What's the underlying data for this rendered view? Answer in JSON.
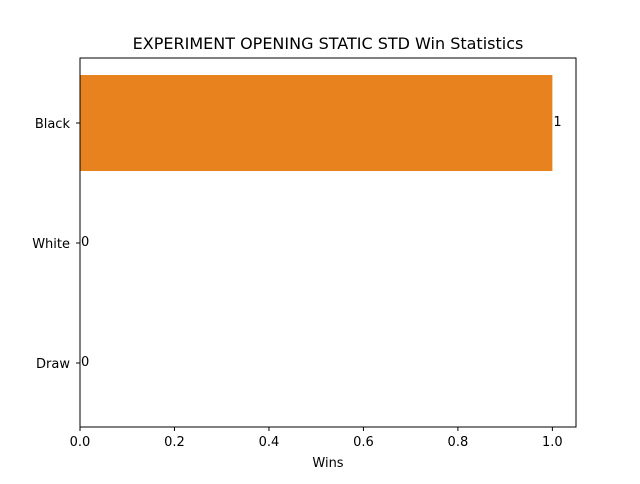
{
  "chart_data": {
    "type": "bar",
    "orientation": "horizontal",
    "title": "EXPERIMENT OPENING STATIC STD Win Statistics",
    "xlabel": "Wins",
    "ylabel": "",
    "categories": [
      "Black",
      "White",
      "Draw"
    ],
    "values": [
      1,
      0,
      0
    ],
    "data_labels": [
      "1",
      "0",
      "0"
    ],
    "xlim": [
      0,
      1.05
    ],
    "xticks": [
      0.0,
      0.2,
      0.4,
      0.6,
      0.8,
      1.0
    ],
    "xtick_labels": [
      "0.0",
      "0.2",
      "0.4",
      "0.6",
      "0.8",
      "1.0"
    ],
    "grid": false,
    "legend": "none",
    "colors": {
      "bar": "#e8821e",
      "axes": "#000000",
      "background": "#ffffff"
    }
  }
}
